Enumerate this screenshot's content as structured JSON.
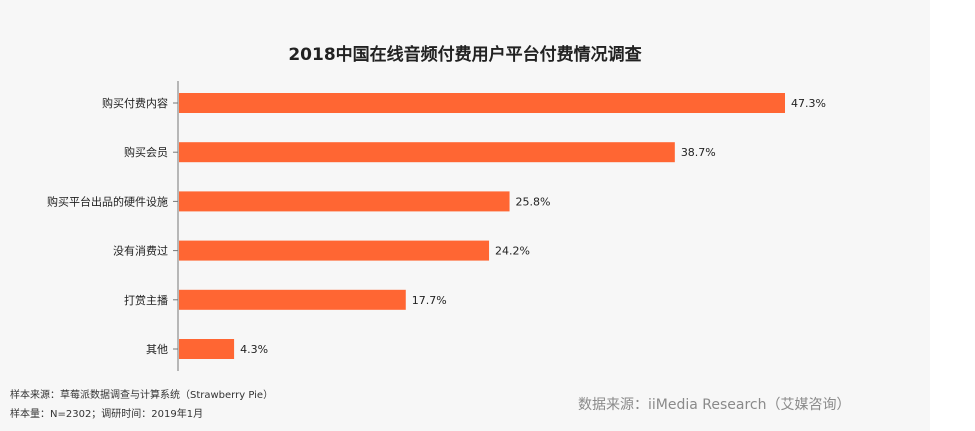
{
  "chart_data": {
    "type": "bar",
    "orientation": "horizontal",
    "title": "2018中国在线音频付费用户平台付费情况调查",
    "categories": [
      "购买付费内容",
      "购买会员",
      "购买平台出品的硬件设施",
      "没有消费过",
      "打赏主播",
      "其他"
    ],
    "values": [
      47.3,
      38.7,
      25.8,
      24.2,
      17.7,
      4.3
    ],
    "value_labels": [
      "47.3%",
      "38.7%",
      "25.8%",
      "24.2%",
      "17.7%",
      "4.3%"
    ],
    "unit": "%",
    "xlim": [
      0,
      47.3
    ],
    "grid": false,
    "legend": "none",
    "bar_color": "#ff6633"
  },
  "footnotes": {
    "sample_source": "样本来源：草莓派数据调查与计算系统（Strawberry Pie）",
    "sample_size": "样本量：N=2302；调研时间：2019年1月"
  },
  "source_text": "数据来源：iiMedia Research（艾媒咨询）"
}
